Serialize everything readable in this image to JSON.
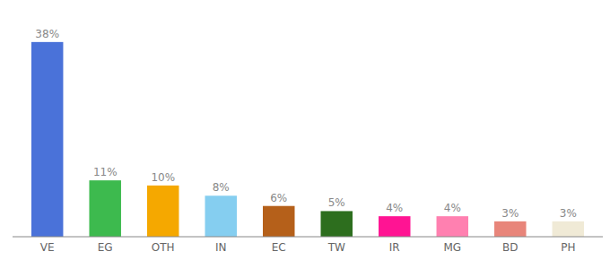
{
  "chart_data": {
    "type": "bar",
    "categories": [
      "VE",
      "EG",
      "OTH",
      "IN",
      "EC",
      "TW",
      "IR",
      "MG",
      "BD",
      "PH"
    ],
    "values": [
      38,
      11,
      10,
      8,
      6,
      5,
      4,
      4,
      3,
      3
    ],
    "value_labels": [
      "38%",
      "11%",
      "10%",
      "8%",
      "6%",
      "5%",
      "4%",
      "4%",
      "3%",
      "3%"
    ],
    "colors": [
      "#4a72d9",
      "#3dba4e",
      "#f5a800",
      "#85cef0",
      "#b5601a",
      "#2d6e1e",
      "#ff1493",
      "#ff80b0",
      "#e8857a",
      "#f0ead6"
    ],
    "ylim": [
      0,
      42
    ],
    "data_labels": true,
    "tick_labels": "x",
    "grid": false
  }
}
